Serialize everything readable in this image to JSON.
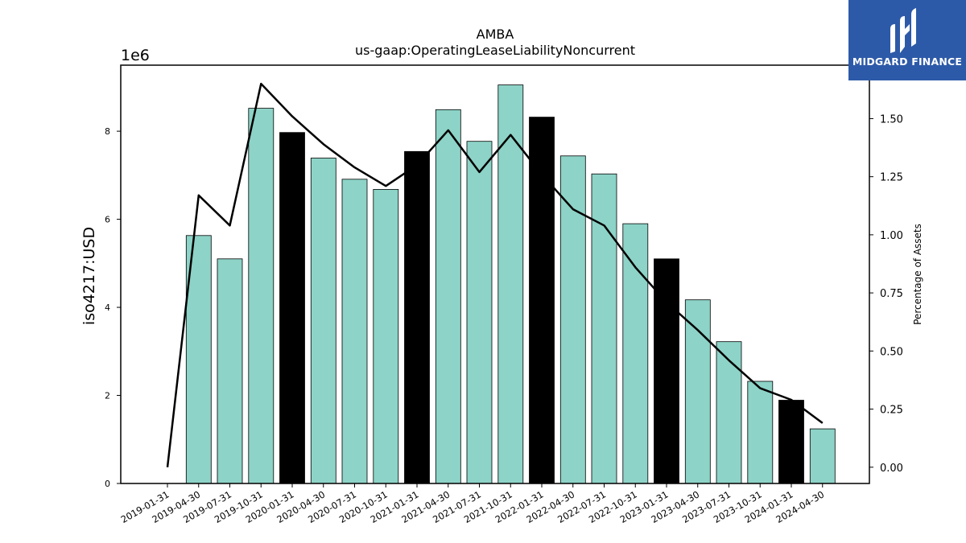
{
  "chart_data": {
    "type": "bar",
    "title": "AMBA",
    "subtitle": "us-gaap:OperatingLeaseLiabilityNoncurrent",
    "ylabel": "iso4217:USD",
    "y2label": "Percentage of Assets",
    "offset_label": "1e6",
    "ylim": [
      0,
      9500000
    ],
    "y2lim": [
      -0.07,
      1.73
    ],
    "y_ticks": [
      0,
      2,
      4,
      6,
      8
    ],
    "y2_ticks": [
      "0.00",
      "0.25",
      "0.50",
      "0.75",
      "1.00",
      "1.25",
      "1.50"
    ],
    "y2_tick_values": [
      0,
      0.25,
      0.5,
      0.75,
      1.0,
      1.25,
      1.5
    ],
    "categories": [
      "2019-01-31",
      "2019-04-30",
      "2019-07-31",
      "2019-10-31",
      "2020-01-31",
      "2020-04-30",
      "2020-07-31",
      "2020-10-31",
      "2021-01-31",
      "2021-04-30",
      "2021-07-31",
      "2021-10-31",
      "2022-01-31",
      "2022-04-30",
      "2022-07-31",
      "2022-10-31",
      "2023-01-31",
      "2023-04-30",
      "2023-07-31",
      "2023-10-31",
      "2024-01-31",
      "2024-04-30"
    ],
    "series": [
      {
        "values": [
          null,
          5630000,
          5100000,
          8520000,
          7970000,
          7390000,
          6910000,
          6680000,
          7540000,
          8490000,
          7770000,
          9050000,
          8320000,
          7440000,
          7030000,
          5900000,
          5100000,
          4170000,
          3220000,
          2320000,
          1890000,
          1240000
        ],
        "highlight": [
          false,
          false,
          false,
          false,
          true,
          false,
          false,
          false,
          true,
          false,
          false,
          false,
          true,
          false,
          false,
          false,
          true,
          false,
          false,
          false,
          true,
          false
        ]
      },
      {
        "axis": "right",
        "type": "line",
        "values": [
          0.0,
          1.17,
          1.04,
          1.65,
          1.51,
          1.39,
          1.29,
          1.21,
          1.3,
          1.45,
          1.27,
          1.43,
          1.26,
          1.11,
          1.04,
          0.86,
          0.71,
          0.59,
          0.46,
          0.34,
          0.29,
          0.19
        ]
      }
    ],
    "colors": {
      "bar": "#8dd3c7",
      "highlight": "#000000",
      "line": "#000000"
    },
    "grid": false
  },
  "logo": {
    "text": "MIDGARD FINANCE",
    "background": "#2d5aa8"
  }
}
